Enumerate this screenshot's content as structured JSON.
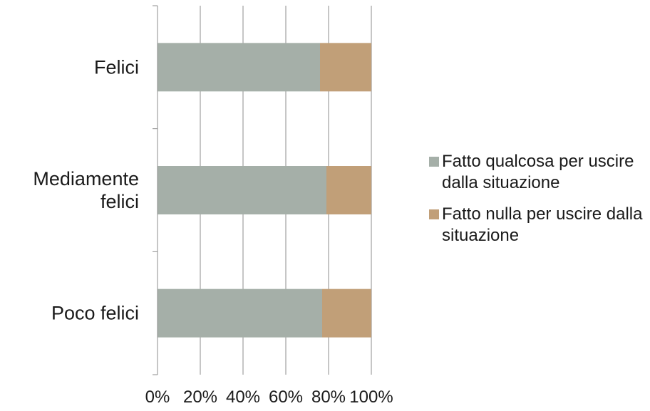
{
  "chart_data": {
    "type": "bar",
    "orientation": "horizontal",
    "stacked": "percent",
    "categories": [
      "Felici",
      "Mediamente felici",
      "Poco felici"
    ],
    "category_lines": [
      [
        "Felici"
      ],
      [
        "Mediamente",
        "felici"
      ],
      [
        "Poco felici"
      ]
    ],
    "series": [
      {
        "name": "Fatto qualcosa per uscire dalla situazione",
        "values": [
          76,
          79,
          77
        ],
        "color": "#a5afa8"
      },
      {
        "name": "Fatto nulla per uscire dalla situazione",
        "values": [
          24,
          21,
          23
        ],
        "color": "#c19f78"
      }
    ],
    "x_ticks": [
      "0%",
      "20%",
      "40%",
      "60%",
      "80%",
      "100%"
    ],
    "xlim": [
      0,
      100
    ],
    "grid": true,
    "legend_position": "right"
  }
}
